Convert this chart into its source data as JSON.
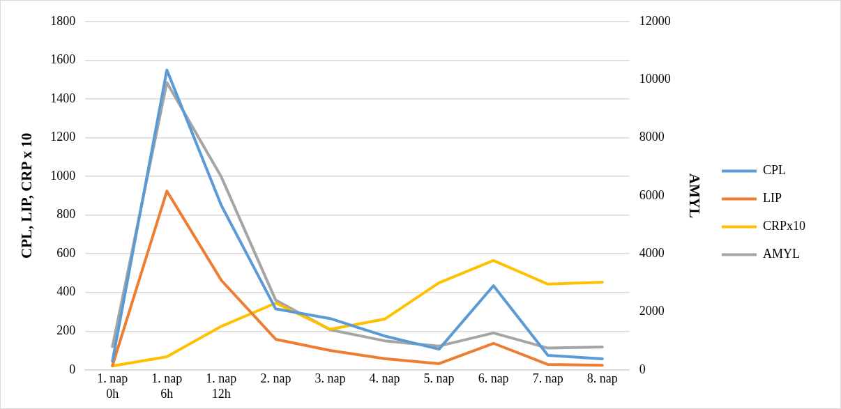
{
  "chart_data": {
    "type": "line",
    "categories": [
      "1. nap 0h",
      "1. nap 6h",
      "1. nap 12h",
      "2. nap",
      "3. nap",
      "4. nap",
      "5. nap",
      "6. nap",
      "7. nap",
      "8. nap"
    ],
    "ylabel": "CPL, LIP, CRP x 10",
    "y2label": "AMYL",
    "ylim": [
      0,
      1800
    ],
    "yticks": [
      0,
      200,
      400,
      600,
      800,
      1000,
      1200,
      1400,
      1600,
      1800
    ],
    "y2lim": [
      0,
      12000
    ],
    "y2ticks": [
      0,
      2000,
      4000,
      6000,
      8000,
      10000,
      12000
    ],
    "grid": "y",
    "legend": "right",
    "marker": "none",
    "line_style": "solid",
    "series": [
      {
        "name": "CPL",
        "color": "#5b9bd5",
        "values": [
          45,
          1550,
          850,
          315,
          265,
          175,
          107,
          435,
          75,
          57
        ]
      },
      {
        "name": "LIP",
        "color": "#ed7d31",
        "values": [
          22,
          924,
          463,
          158,
          100,
          58,
          32,
          137,
          28,
          24
        ]
      },
      {
        "name": "CRPx10",
        "color": "#ffc000",
        "values": [
          20,
          68,
          225,
          345,
          210,
          262,
          450,
          565,
          443,
          453
        ]
      },
      {
        "name": "AMYL",
        "color": "#a5a5a5",
        "axis": "y2",
        "values": [
          800,
          9900,
          6650,
          2400,
          1380,
          1000,
          820,
          1270,
          750,
          790
        ]
      }
    ]
  }
}
